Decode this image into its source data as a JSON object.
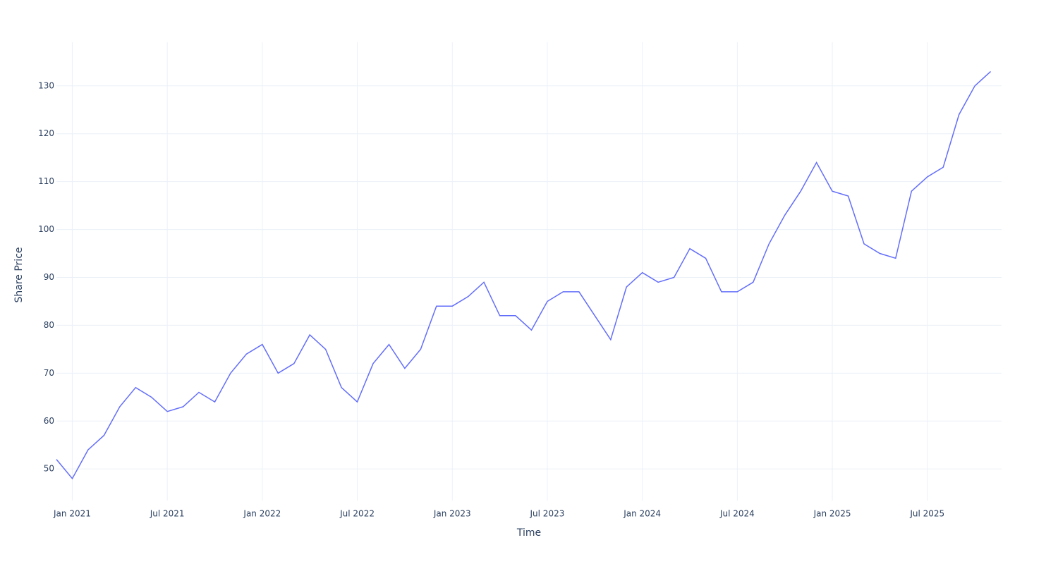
{
  "chart_data": {
    "type": "line",
    "x_label": "Time",
    "y_label": "Share Price",
    "x": [
      "2020-12",
      "2021-01",
      "2021-02",
      "2021-03",
      "2021-04",
      "2021-05",
      "2021-06",
      "2021-07",
      "2021-08",
      "2021-09",
      "2021-10",
      "2021-11",
      "2021-12",
      "2022-01",
      "2022-02",
      "2022-03",
      "2022-04",
      "2022-05",
      "2022-06",
      "2022-07",
      "2022-08",
      "2022-09",
      "2022-10",
      "2022-11",
      "2022-12",
      "2023-01",
      "2023-02",
      "2023-03",
      "2023-04",
      "2023-05",
      "2023-06",
      "2023-07",
      "2023-08",
      "2023-09",
      "2023-10",
      "2023-11",
      "2023-12",
      "2024-01",
      "2024-02",
      "2024-03",
      "2024-04",
      "2024-05",
      "2024-06",
      "2024-07",
      "2024-08",
      "2024-09",
      "2024-10",
      "2024-11",
      "2024-12",
      "2025-01",
      "2025-02",
      "2025-03",
      "2025-04",
      "2025-05",
      "2025-06",
      "2025-07",
      "2025-08",
      "2025-09",
      "2025-10",
      "2025-11"
    ],
    "series": [
      {
        "name": "Share Price",
        "color": "#636efa",
        "values": [
          52,
          48,
          54,
          57,
          63,
          67,
          65,
          62,
          63,
          66,
          64,
          70,
          74,
          76,
          70,
          72,
          78,
          75,
          67,
          64,
          72,
          76,
          71,
          75,
          84,
          84,
          86,
          89,
          82,
          82,
          79,
          85,
          87,
          87,
          82,
          77,
          88,
          91,
          89,
          90,
          96,
          94,
          87,
          87,
          89,
          97,
          103,
          108,
          114,
          108,
          107,
          97,
          95,
          94,
          108,
          111,
          113,
          124,
          130,
          133
        ]
      }
    ],
    "xlim": [
      "2020-12",
      "2025-12"
    ],
    "xticks": [
      {
        "value": "2021-01",
        "label": "Jan 2021"
      },
      {
        "value": "2021-07",
        "label": "Jul 2021"
      },
      {
        "value": "2022-01",
        "label": "Jan 2022"
      },
      {
        "value": "2022-07",
        "label": "Jul 2022"
      },
      {
        "value": "2023-01",
        "label": "Jan 2023"
      },
      {
        "value": "2023-07",
        "label": "Jul 2023"
      },
      {
        "value": "2024-01",
        "label": "Jan 2024"
      },
      {
        "value": "2024-07",
        "label": "Jul 2024"
      },
      {
        "value": "2025-01",
        "label": "Jan 2025"
      },
      {
        "value": "2025-07",
        "label": "Jul 2025"
      }
    ],
    "ylim": [
      43.4,
      139.1
    ],
    "yticks": [
      50,
      60,
      70,
      80,
      90,
      100,
      110,
      120,
      130
    ],
    "grid": true
  }
}
